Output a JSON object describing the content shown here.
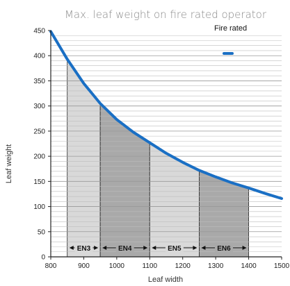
{
  "chart_data": {
    "type": "line",
    "title": "Max. leaf weight on fire rated operator",
    "xlabel": "Leaf width",
    "ylabel": "Leaf weight",
    "xlim": [
      800,
      1500
    ],
    "ylim": [
      0,
      450
    ],
    "x_ticks": [
      "800",
      "900",
      "1000",
      "1100",
      "1200",
      "1300",
      "1400",
      "1500"
    ],
    "y_ticks": [
      "0",
      "50",
      "100",
      "150",
      "200",
      "250",
      "300",
      "350",
      "400",
      "450"
    ],
    "grid": "horizontal",
    "legend": {
      "position": "top-right",
      "entries": [
        "Fire rated"
      ]
    },
    "series": [
      {
        "name": "Fire rated",
        "color": "#1a6fc4",
        "x": [
          800,
          850,
          900,
          950,
          1000,
          1050,
          1100,
          1150,
          1200,
          1250,
          1300,
          1350,
          1400,
          1450,
          1500
        ],
        "y": [
          448,
          393,
          345,
          305,
          273,
          248,
          227,
          206,
          188,
          172,
          159,
          147,
          137,
          126,
          116
        ]
      }
    ],
    "zones": [
      {
        "label": "EN3",
        "x_start": 850,
        "x_end": 950,
        "shade": "#d9d9d9"
      },
      {
        "label": "EN4",
        "x_start": 950,
        "x_end": 1100,
        "shade": "#a9a9a9"
      },
      {
        "label": "EN5",
        "x_start": 1100,
        "x_end": 1250,
        "shade": "#d9d9d9"
      },
      {
        "label": "EN6",
        "x_start": 1250,
        "x_end": 1400,
        "shade": "#a9a9a9"
      }
    ]
  }
}
